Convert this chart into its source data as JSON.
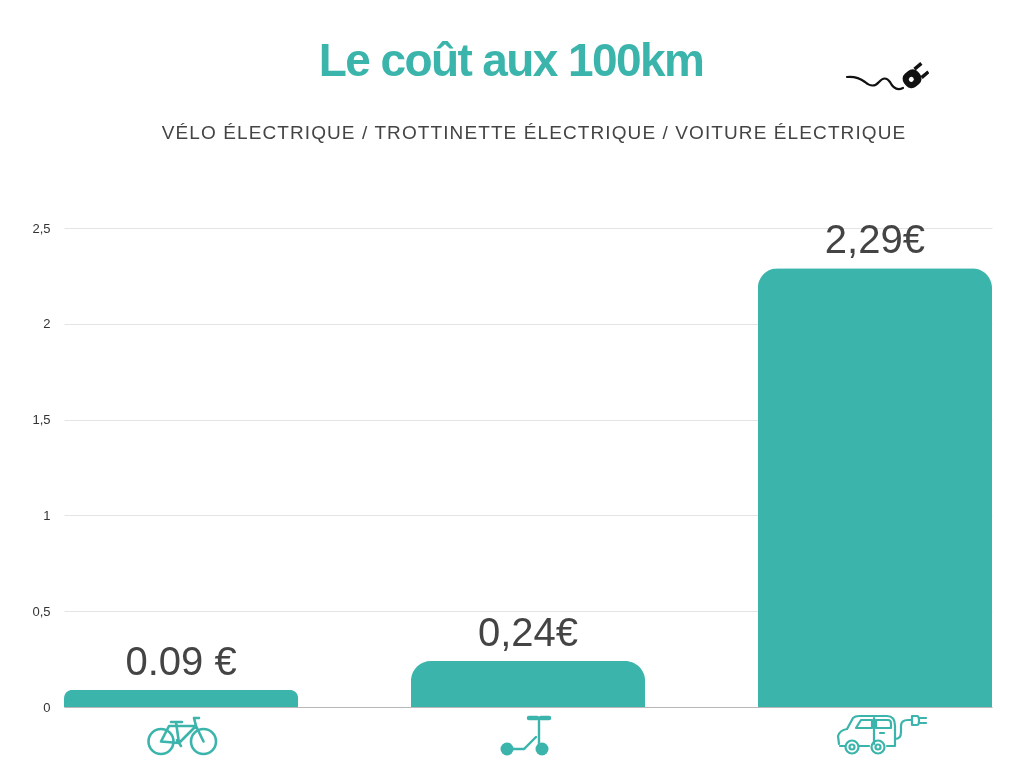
{
  "chart_data": {
    "type": "bar",
    "title": "Le coût aux 100km",
    "subtitle": "VÉLO ÉLECTRIQUE / TROTTINETTE ÉLECTRIQUE / VOITURE ÉLECTRIQUE",
    "categories": [
      null,
      null,
      null
    ],
    "values": [
      0.09,
      0.24,
      2.29
    ],
    "value_labels": [
      "0.09 €",
      "0,24€",
      "2,29€"
    ],
    "color": "#3bb5ac",
    "ylim": [
      0,
      2.5
    ],
    "yticks": [
      0,
      {
        "value": 0.5,
        "label": "0,5"
      },
      1,
      {
        "value": 1.5,
        "label": "1,5"
      },
      2,
      {
        "value": 2.5,
        "label": "2,5"
      }
    ],
    "grid": "y",
    "tick_labels": "y"
  }
}
